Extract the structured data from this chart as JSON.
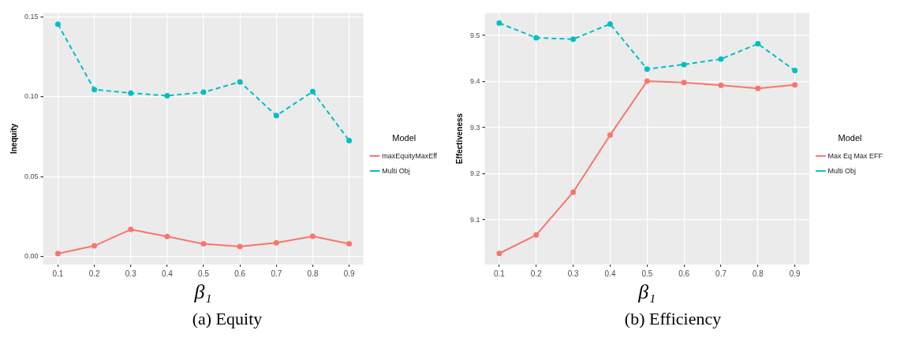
{
  "chart_data": [
    {
      "type": "line",
      "xlabel": "β₁",
      "ylabel": "Inequity",
      "legend_title": "Model",
      "annotations": [
        "(a) Equity"
      ],
      "legend": "right",
      "grid": true,
      "marker": "circle",
      "x": [
        0.1,
        0.2,
        0.3,
        0.4,
        0.5,
        0.6,
        0.7,
        0.8,
        0.9
      ],
      "xlim": [
        0.059,
        0.939
      ],
      "xticks": [
        0.1,
        0.2,
        0.3,
        0.4,
        0.5,
        0.6,
        0.7,
        0.8,
        0.9
      ],
      "ylim": [
        -0.0049,
        0.1524
      ],
      "yticks": [
        {
          "value": 0,
          "label": "0.00"
        },
        {
          "value": 0.05,
          "label": "0.05"
        },
        {
          "value": 0.1,
          "label": "0.10"
        },
        {
          "value": 0.15,
          "label": "0.15"
        }
      ],
      "series": [
        {
          "name": "maxEquityMaxEff",
          "color": "#f8766d",
          "line_style": "solid",
          "values": [
            0.0019,
            0.0068,
            0.017,
            0.0126,
            0.008,
            0.0063,
            0.0087,
            0.0127,
            0.0081
          ]
        },
        {
          "name": "Multi Obj",
          "color": "#00bfc4",
          "line_style": "dashed",
          "values": [
            0.1453,
            0.1045,
            0.1023,
            0.1006,
            0.1028,
            0.1093,
            0.0882,
            0.1032,
            0.0726
          ]
        }
      ]
    },
    {
      "type": "line",
      "xlabel": "β₁",
      "ylabel": "Effectiveness",
      "legend_title": "Model",
      "annotations": [
        "(b) Efficiency"
      ],
      "legend": "right",
      "grid": true,
      "marker": "circle",
      "x": [
        0.1,
        0.2,
        0.3,
        0.4,
        0.5,
        0.6,
        0.7,
        0.8,
        0.9
      ],
      "xlim": [
        0.0606,
        0.939
      ],
      "xticks": [
        0.1,
        0.2,
        0.3,
        0.4,
        0.5,
        0.6,
        0.7,
        0.8,
        0.9
      ],
      "ylim": [
        9.003,
        9.549
      ],
      "yticks": [
        9.1,
        9.2,
        9.3,
        9.4,
        9.5
      ],
      "series": [
        {
          "name": "Max Eq Max EFF",
          "color": "#f8766d",
          "line_style": "solid",
          "values": [
            9.027,
            9.067,
            9.16,
            9.284,
            9.401,
            9.398,
            9.392,
            9.385,
            9.393
          ]
        },
        {
          "name": "Multi Obj",
          "color": "#00bfc4",
          "line_style": "dashed",
          "values": [
            9.527,
            9.495,
            9.492,
            9.525,
            9.427,
            9.437,
            9.449,
            9.482,
            9.424
          ]
        }
      ]
    }
  ]
}
